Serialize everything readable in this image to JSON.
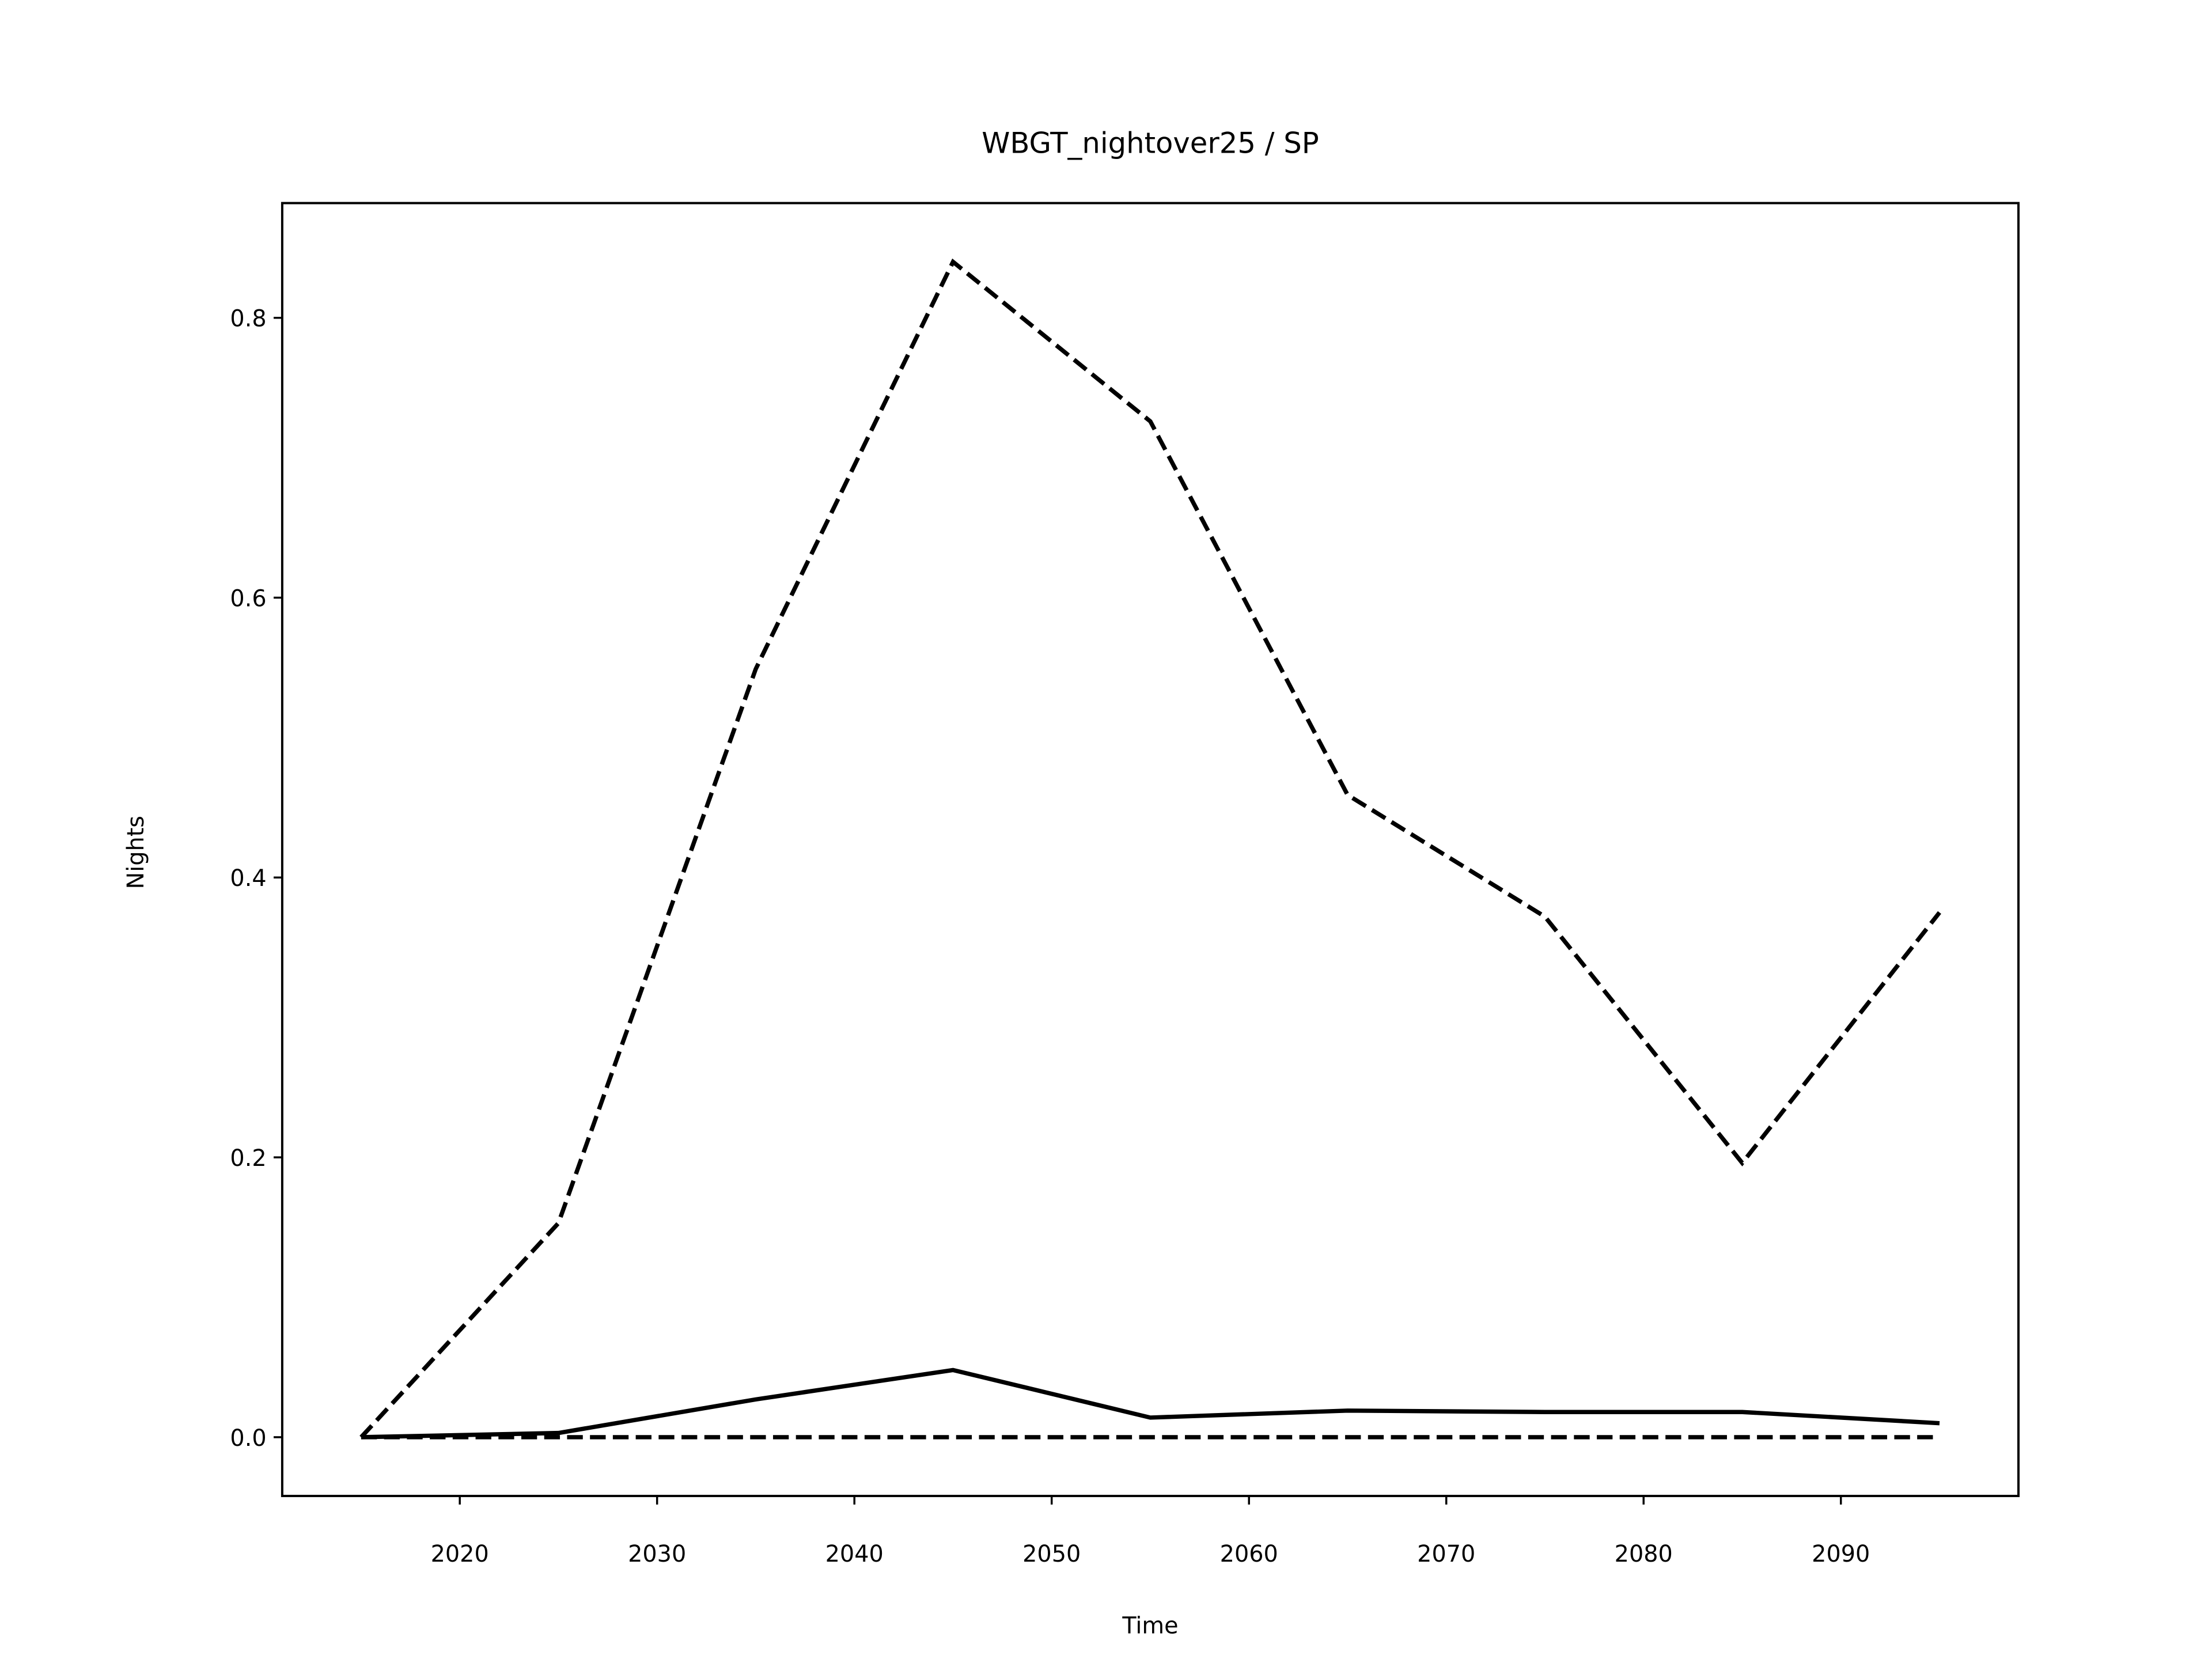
{
  "chart_data": {
    "type": "line",
    "title": "WBGT_nightover25 / SP",
    "x_label": "Time",
    "y_label": "Nights",
    "x": [
      2015,
      2025,
      2035,
      2045,
      2055,
      2065,
      2075,
      2085,
      2095
    ],
    "series": [
      {
        "color": "#000000",
        "linestyle": "dashed",
        "values": [
          0,
          0.153,
          0.549,
          0.84,
          0.726,
          0.459,
          0.372,
          0.196,
          0.375
        ]
      },
      {
        "color": "#000000",
        "linestyle": "solid",
        "values": [
          0,
          0.003,
          0.027,
          0.048,
          0.014,
          0.019,
          0.018,
          0.018,
          0.01
        ]
      },
      {
        "color": "#000000",
        "linestyle": "dashed",
        "values": [
          0,
          0,
          0,
          0,
          0,
          0,
          0,
          0,
          0
        ]
      }
    ],
    "xlim": [
      2011,
      2099
    ],
    "ylim": [
      -0.042,
      0.882
    ],
    "xticks": [
      2020,
      2030,
      2040,
      2050,
      2060,
      2070,
      2080,
      2090
    ],
    "yticks": [
      {
        "value": 0,
        "label": "0.0"
      },
      0.2,
      0.4,
      0.6,
      0.8
    ],
    "grid": false
  }
}
